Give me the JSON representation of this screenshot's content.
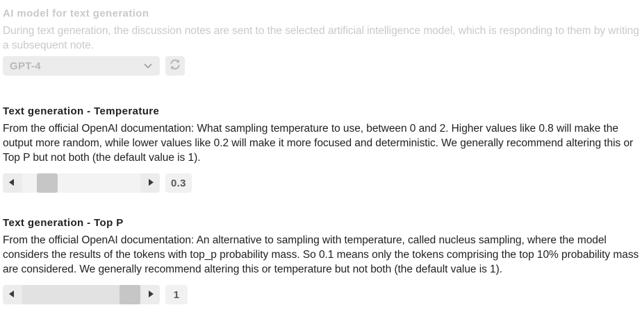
{
  "model_section": {
    "title": "AI model for text generation",
    "description": "During text generation, the discussion notes are sent to the selected artificial intelligence model, which is responding to them by writing a subsequent note.",
    "select_value": "GPT-4",
    "disabled": true
  },
  "temperature_section": {
    "title": "Text generation - Temperature",
    "description": "From the official OpenAI documentation: What sampling temperature to use, between 0 and 2. Higher values like 0.8 will make the output more random, while lower values like 0.2 will make it more focused and deterministic. We generally recommend altering this or Top P but not both (the default value is 1).",
    "value": "0.3",
    "min": 0,
    "max": 2,
    "level": 0.15
  },
  "top_p_section": {
    "title": "Text generation - Top P",
    "description": "From the official OpenAI documentation: An alternative to sampling with temperature, called nucleus sampling, where the model considers the results of the tokens with top_p probability mass. So 0.1 means only the tokens comprising the top 10% probability mass are considered. We generally recommend altering this or temperature but not both (the default value is 1).",
    "value": "1",
    "min": 0,
    "max": 1,
    "level": 1
  }
}
